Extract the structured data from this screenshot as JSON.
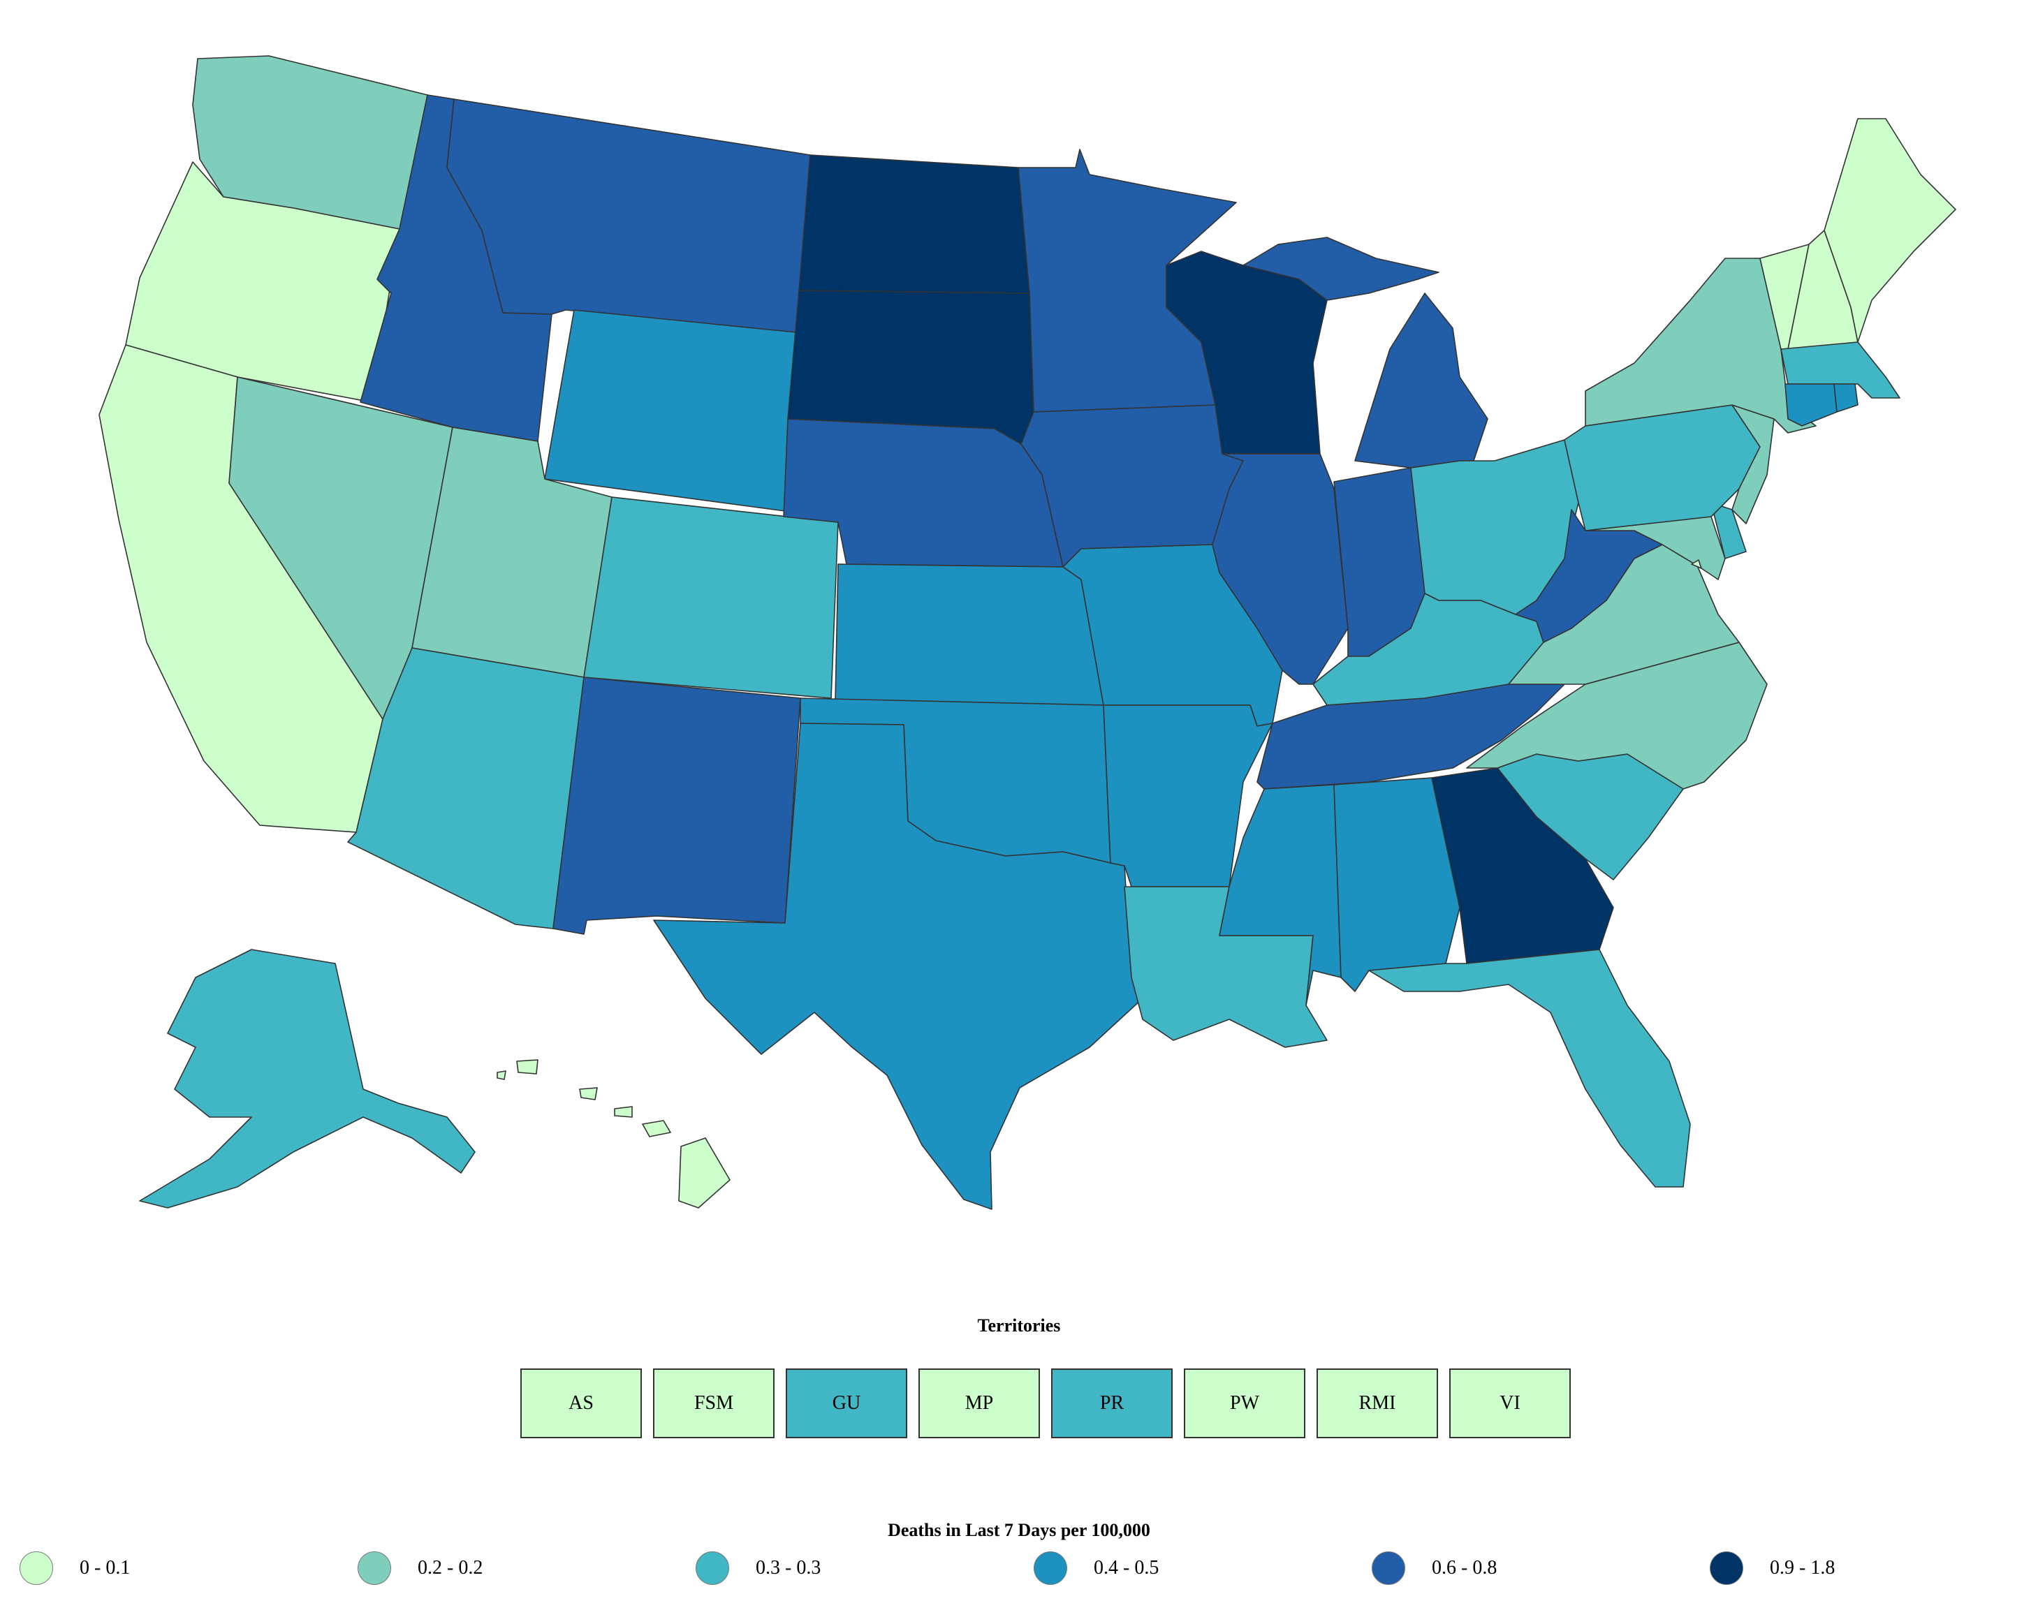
{
  "palette": {
    "bin1": "#ccffcc",
    "bin2": "#7fcdbb",
    "bin3": "#41b6c4",
    "bin4": "#1d91c0",
    "bin5": "#225ea8",
    "bin6": "#003366"
  },
  "states": {
    "WA": "bin2",
    "OR": "bin1",
    "CA": "bin1",
    "NV": "bin2",
    "ID": "bin5",
    "MT": "bin5",
    "WY": "bin4",
    "UT": "bin2",
    "AZ": "bin3",
    "CO": "bin3",
    "NM": "bin5",
    "ND": "bin6",
    "SD": "bin6",
    "NE": "bin5",
    "KS": "bin4",
    "OK": "bin4",
    "TX": "bin4",
    "MN": "bin5",
    "IA": "bin5",
    "MO": "bin4",
    "AR": "bin4",
    "LA": "bin3",
    "WI": "bin6",
    "IL": "bin5",
    "MI": "bin5",
    "IN": "bin5",
    "OH": "bin3",
    "KY": "bin3",
    "TN": "bin5",
    "MS": "bin4",
    "AL": "bin4",
    "GA": "bin6",
    "FL": "bin3",
    "SC": "bin3",
    "NC": "bin2",
    "VA": "bin2",
    "WV": "bin5",
    "MD": "bin2",
    "DE": "bin3",
    "PA": "bin3",
    "NJ": "bin2",
    "NY": "bin2",
    "CT": "bin4",
    "RI": "bin4",
    "MA": "bin3",
    "VT": "bin1",
    "NH": "bin1",
    "ME": "bin1",
    "AK": "bin3",
    "HI": "bin1",
    "DC": "bin1"
  },
  "territories_title": "Territories",
  "territories": [
    {
      "label": "AS",
      "bin": "bin1"
    },
    {
      "label": "FSM",
      "bin": "bin1"
    },
    {
      "label": "GU",
      "bin": "bin3"
    },
    {
      "label": "MP",
      "bin": "bin1"
    },
    {
      "label": "PR",
      "bin": "bin3"
    },
    {
      "label": "PW",
      "bin": "bin1"
    },
    {
      "label": "RMI",
      "bin": "bin1"
    },
    {
      "label": "VI",
      "bin": "bin1"
    }
  ],
  "legend_title": "Deaths in Last 7 Days per 100,000",
  "legend": [
    {
      "label": "0 - 0.1",
      "bin": "bin1"
    },
    {
      "label": "0.2 - 0.2",
      "bin": "bin2"
    },
    {
      "label": "0.3 - 0.3",
      "bin": "bin3"
    },
    {
      "label": "0.4 - 0.5",
      "bin": "bin4"
    },
    {
      "label": "0.6 - 0.8",
      "bin": "bin5"
    },
    {
      "label": "0.9 - 1.8",
      "bin": "bin6"
    }
  ]
}
